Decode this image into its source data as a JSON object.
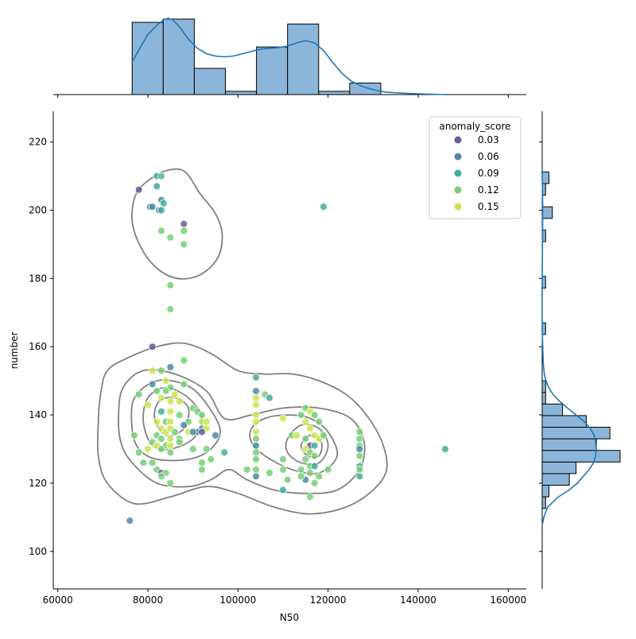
{
  "chart_data": {
    "type": "scatter",
    "xlabel": "N50",
    "ylabel": "number",
    "xlim": [
      59000,
      164000
    ],
    "ylim": [
      89,
      229
    ],
    "xticks": [
      60000,
      80000,
      100000,
      120000,
      140000,
      160000
    ],
    "yticks": [
      100,
      120,
      140,
      160,
      180,
      200,
      220
    ],
    "legend": {
      "title": "anomaly_score",
      "position": "top-right",
      "entries": [
        {
          "label": "0.03",
          "color": "#6a5b9a"
        },
        {
          "label": "0.06",
          "color": "#4f89a2"
        },
        {
          "label": "0.09",
          "color": "#3fae9e"
        },
        {
          "label": "0.12",
          "color": "#76cf77"
        },
        {
          "label": "0.15",
          "color": "#cde44e"
        }
      ]
    },
    "colors": {
      "bar_fill": "#8bb6d9",
      "bar_edge": "#000000",
      "kde_line": "#1f77b4",
      "contour": "#808080"
    },
    "points": [
      [
        78000,
        206,
        0.03
      ],
      [
        80500,
        201,
        0.06
      ],
      [
        81000,
        201,
        0.06
      ],
      [
        82000,
        210,
        0.09
      ],
      [
        82000,
        207,
        0.09
      ],
      [
        83000,
        210,
        0.1
      ],
      [
        83000,
        203,
        0.06
      ],
      [
        83500,
        202,
        0.09
      ],
      [
        82500,
        200,
        0.06
      ],
      [
        83000,
        200,
        0.09
      ],
      [
        88000,
        196,
        0.03
      ],
      [
        83000,
        194,
        0.12
      ],
      [
        85000,
        192,
        0.12
      ],
      [
        88000,
        194,
        0.12
      ],
      [
        88000,
        190,
        0.12
      ],
      [
        85000,
        178,
        0.12
      ],
      [
        85000,
        171,
        0.12
      ],
      [
        119000,
        201,
        0.09
      ],
      [
        81000,
        160,
        0.03
      ],
      [
        88000,
        156,
        0.12
      ],
      [
        85000,
        154,
        0.06
      ],
      [
        81000,
        153,
        0.15
      ],
      [
        83000,
        153,
        0.12
      ],
      [
        78000,
        146,
        0.12
      ],
      [
        81000,
        149,
        0.06
      ],
      [
        84000,
        150,
        0.15
      ],
      [
        85000,
        148,
        0.12
      ],
      [
        88000,
        149,
        0.12
      ],
      [
        80000,
        143,
        0.15
      ],
      [
        82000,
        147,
        0.12
      ],
      [
        83000,
        145,
        0.15
      ],
      [
        84000,
        147,
        0.12
      ],
      [
        85000,
        144,
        0.15
      ],
      [
        86000,
        146,
        0.15
      ],
      [
        87000,
        144,
        0.15
      ],
      [
        90000,
        142,
        0.12
      ],
      [
        91000,
        141,
        0.12
      ],
      [
        92000,
        140,
        0.12
      ],
      [
        92000,
        138,
        0.15
      ],
      [
        93000,
        138,
        0.15
      ],
      [
        92000,
        136,
        0.09
      ],
      [
        93000,
        136,
        0.15
      ],
      [
        89000,
        138,
        0.12
      ],
      [
        87000,
        140,
        0.12
      ],
      [
        85000,
        141,
        0.15
      ],
      [
        83000,
        141,
        0.09
      ],
      [
        82000,
        138,
        0.15
      ],
      [
        84000,
        138,
        0.12
      ],
      [
        85000,
        138,
        0.15
      ],
      [
        83000,
        136,
        0.15
      ],
      [
        84000,
        135,
        0.15
      ],
      [
        85000,
        136,
        0.15
      ],
      [
        86000,
        135,
        0.12
      ],
      [
        82000,
        134,
        0.12
      ],
      [
        83000,
        133,
        0.12
      ],
      [
        85000,
        133,
        0.15
      ],
      [
        87000,
        133,
        0.12
      ],
      [
        81000,
        132,
        0.12
      ],
      [
        82000,
        131,
        0.15
      ],
      [
        84000,
        131,
        0.12
      ],
      [
        85000,
        131,
        0.15
      ],
      [
        80000,
        130,
        0.15
      ],
      [
        83000,
        130,
        0.12
      ],
      [
        85000,
        129,
        0.12
      ],
      [
        87000,
        132,
        0.12
      ],
      [
        91000,
        135,
        0.06
      ],
      [
        95000,
        134,
        0.06
      ],
      [
        90000,
        130,
        0.12
      ],
      [
        93000,
        130,
        0.12
      ],
      [
        97000,
        129,
        0.09
      ],
      [
        94000,
        127,
        0.12
      ],
      [
        92000,
        126,
        0.12
      ],
      [
        88000,
        137,
        0.06
      ],
      [
        89000,
        135,
        0.15
      ],
      [
        90000,
        135,
        0.06
      ],
      [
        92000,
        135,
        0.03
      ],
      [
        77000,
        134,
        0.12
      ],
      [
        78000,
        129,
        0.12
      ],
      [
        79000,
        126,
        0.12
      ],
      [
        81000,
        126,
        0.12
      ],
      [
        82000,
        124,
        0.12
      ],
      [
        83000,
        123,
        0.03
      ],
      [
        84000,
        123,
        0.12
      ],
      [
        83000,
        122,
        0.12
      ],
      [
        85000,
        120,
        0.12
      ],
      [
        92000,
        124,
        0.12
      ],
      [
        76000,
        109,
        0.06
      ],
      [
        104000,
        151,
        0.09
      ],
      [
        104000,
        147,
        0.06
      ],
      [
        106000,
        146,
        0.12
      ],
      [
        107000,
        145,
        0.09
      ],
      [
        104000,
        145,
        0.15
      ],
      [
        104000,
        143,
        0.15
      ],
      [
        104000,
        140,
        0.15
      ],
      [
        104000,
        138,
        0.15
      ],
      [
        104000,
        135,
        0.15
      ],
      [
        104000,
        133,
        0.12
      ],
      [
        104000,
        131,
        0.06
      ],
      [
        104000,
        129,
        0.12
      ],
      [
        104000,
        127,
        0.12
      ],
      [
        102000,
        124,
        0.12
      ],
      [
        104000,
        124,
        0.12
      ],
      [
        104000,
        122,
        0.06
      ],
      [
        107000,
        123,
        0.12
      ],
      [
        110000,
        139,
        0.15
      ],
      [
        110000,
        127,
        0.12
      ],
      [
        110000,
        124,
        0.12
      ],
      [
        111000,
        121,
        0.12
      ],
      [
        110000,
        118,
        0.09
      ],
      [
        112000,
        134,
        0.12
      ],
      [
        113000,
        134,
        0.15
      ],
      [
        114000,
        140,
        0.12
      ],
      [
        115000,
        142,
        0.12
      ],
      [
        116000,
        141,
        0.15
      ],
      [
        117000,
        140,
        0.12
      ],
      [
        118000,
        138,
        0.12
      ],
      [
        115000,
        138,
        0.15
      ],
      [
        116000,
        136,
        0.15
      ],
      [
        117000,
        134,
        0.15
      ],
      [
        118000,
        133,
        0.15
      ],
      [
        119000,
        134,
        0.12
      ],
      [
        115000,
        133,
        0.12
      ],
      [
        116000,
        131,
        0.03
      ],
      [
        117000,
        131,
        0.09
      ],
      [
        115000,
        130,
        0.15
      ],
      [
        116000,
        129,
        0.12
      ],
      [
        117000,
        128,
        0.12
      ],
      [
        115000,
        127,
        0.12
      ],
      [
        116000,
        125,
        0.12
      ],
      [
        117000,
        125,
        0.09
      ],
      [
        114000,
        124,
        0.12
      ],
      [
        116000,
        123,
        0.12
      ],
      [
        118000,
        122,
        0.12
      ],
      [
        120000,
        124,
        0.12
      ],
      [
        117000,
        120,
        0.12
      ],
      [
        115000,
        121,
        0.06
      ],
      [
        116000,
        116,
        0.12
      ],
      [
        114000,
        122,
        0.12
      ],
      [
        127000,
        135,
        0.12
      ],
      [
        127000,
        133,
        0.12
      ],
      [
        127000,
        131,
        0.12
      ],
      [
        127000,
        130,
        0.06
      ],
      [
        127000,
        128,
        0.12
      ],
      [
        127000,
        125,
        0.09
      ],
      [
        127000,
        124,
        0.12
      ],
      [
        127000,
        122,
        0.09
      ],
      [
        146000,
        130,
        0.09
      ]
    ],
    "top_histogram": {
      "bin_edges": [
        76500,
        83400,
        90300,
        97200,
        104100,
        111000,
        117900,
        124800,
        131700
      ],
      "counts": [
        44,
        46,
        16,
        2,
        29,
        43,
        2,
        7
      ]
    },
    "right_histogram": {
      "bin_edges": [
        112.6,
        116,
        119.4,
        122.8,
        126.2,
        129.6,
        133,
        136.4,
        139.8,
        143.2,
        146.6,
        150,
        153.4,
        156.8,
        160.2,
        163.6,
        167,
        170.4,
        173.8,
        177.2,
        180.6,
        184,
        187.4,
        190.8,
        194.2,
        197.6,
        201,
        204.4,
        207.8,
        211.2
      ],
      "counts": [
        1,
        2,
        8,
        10,
        23,
        16,
        20,
        13,
        6,
        1,
        1,
        0,
        0,
        0,
        0,
        1,
        0,
        0,
        0,
        1,
        0,
        0,
        0,
        1,
        0,
        3,
        0,
        1,
        2
      ]
    },
    "top_kde": [
      [
        76500,
        0.42
      ],
      [
        78000,
        0.58
      ],
      [
        80000,
        0.78
      ],
      [
        82000,
        0.9
      ],
      [
        83500,
        0.97
      ],
      [
        84500,
        0.99
      ],
      [
        85500,
        0.97
      ],
      [
        87000,
        0.88
      ],
      [
        89000,
        0.72
      ],
      [
        91000,
        0.6
      ],
      [
        93000,
        0.53
      ],
      [
        95000,
        0.5
      ],
      [
        97000,
        0.49
      ],
      [
        99000,
        0.5
      ],
      [
        101000,
        0.53
      ],
      [
        103000,
        0.56
      ],
      [
        105000,
        0.59
      ],
      [
        107000,
        0.6
      ],
      [
        109000,
        0.61
      ],
      [
        111000,
        0.63
      ],
      [
        113000,
        0.67
      ],
      [
        115000,
        0.7
      ],
      [
        117000,
        0.67
      ],
      [
        119000,
        0.57
      ],
      [
        121000,
        0.42
      ],
      [
        123000,
        0.28
      ],
      [
        125000,
        0.18
      ],
      [
        127000,
        0.12
      ],
      [
        129000,
        0.08
      ],
      [
        131000,
        0.05
      ],
      [
        133000,
        0.03
      ],
      [
        136000,
        0.02
      ],
      [
        140000,
        0.01
      ],
      [
        146000,
        0.0
      ]
    ],
    "right_kde": [
      [
        107.5,
        0.0
      ],
      [
        110,
        0.03
      ],
      [
        113,
        0.1
      ],
      [
        116,
        0.3
      ],
      [
        118,
        0.5
      ],
      [
        120,
        0.65
      ],
      [
        122,
        0.76
      ],
      [
        124,
        0.87
      ],
      [
        126,
        0.95
      ],
      [
        128,
        0.99
      ],
      [
        130,
        1.0
      ],
      [
        132,
        0.99
      ],
      [
        134,
        0.96
      ],
      [
        136,
        0.89
      ],
      [
        138,
        0.78
      ],
      [
        140,
        0.63
      ],
      [
        142,
        0.47
      ],
      [
        144,
        0.32
      ],
      [
        146,
        0.2
      ],
      [
        148,
        0.12
      ],
      [
        150,
        0.07
      ],
      [
        152,
        0.04
      ],
      [
        155,
        0.02
      ],
      [
        160,
        0.01
      ],
      [
        165,
        0.0
      ],
      [
        180,
        0.0
      ],
      [
        200,
        0.01
      ],
      [
        211,
        0.0
      ]
    ],
    "contours": [
      [
        [
          88500,
          211
        ],
        [
          91500,
          205
        ],
        [
          95000,
          199
        ],
        [
          96500,
          193
        ],
        [
          95500,
          186
        ],
        [
          91500,
          181
        ],
        [
          86500,
          180
        ],
        [
          82000,
          183
        ],
        [
          78500,
          189
        ],
        [
          76500,
          197
        ],
        [
          77500,
          205
        ],
        [
          81500,
          210
        ],
        [
          85500,
          212
        ]
      ],
      [
        [
          69500,
          146
        ],
        [
          71000,
          153
        ],
        [
          76000,
          157
        ],
        [
          82000,
          160
        ],
        [
          88000,
          161
        ],
        [
          94000,
          158
        ],
        [
          100000,
          153
        ],
        [
          106000,
          152
        ],
        [
          112000,
          152
        ],
        [
          118000,
          150
        ],
        [
          124000,
          146
        ],
        [
          128500,
          140
        ],
        [
          132000,
          132
        ],
        [
          133000,
          124
        ],
        [
          130000,
          118
        ],
        [
          124000,
          113
        ],
        [
          116000,
          111
        ],
        [
          108000,
          113
        ],
        [
          100000,
          117
        ],
        [
          93000,
          119
        ],
        [
          85000,
          116
        ],
        [
          77000,
          114
        ],
        [
          71000,
          120
        ],
        [
          69000,
          128
        ],
        [
          69000,
          138
        ]
      ],
      [
        [
          76500,
          126
        ],
        [
          82000,
          120
        ],
        [
          89000,
          119
        ],
        [
          94000,
          121
        ],
        [
          98000,
          124
        ],
        [
          102000,
          121
        ],
        [
          108000,
          118
        ],
        [
          115000,
          117
        ],
        [
          122000,
          118
        ],
        [
          127000,
          124
        ],
        [
          128000,
          132
        ],
        [
          125000,
          139
        ],
        [
          118000,
          142
        ],
        [
          110000,
          142
        ],
        [
          103000,
          140
        ],
        [
          97000,
          139
        ],
        [
          93000,
          147
        ],
        [
          86000,
          152
        ],
        [
          79000,
          153
        ],
        [
          74500,
          148
        ],
        [
          73500,
          140
        ],
        [
          74000,
          132
        ]
      ],
      [
        [
          76500,
          136
        ],
        [
          77000,
          145
        ],
        [
          82000,
          150
        ],
        [
          88000,
          149
        ],
        [
          92000,
          145
        ],
        [
          96000,
          136
        ],
        [
          94000,
          130
        ],
        [
          89000,
          127
        ],
        [
          82000,
          127
        ],
        [
          78000,
          130
        ]
      ],
      [
        [
          79000,
          138
        ],
        [
          80000,
          145
        ],
        [
          84000,
          148
        ],
        [
          89000,
          145
        ],
        [
          92000,
          139
        ],
        [
          90000,
          133
        ],
        [
          85000,
          130
        ],
        [
          81000,
          131
        ]
      ],
      [
        [
          81500,
          139
        ],
        [
          82500,
          144
        ],
        [
          86000,
          145
        ],
        [
          89000,
          142
        ],
        [
          88000,
          136
        ],
        [
          84000,
          134
        ]
      ],
      [
        [
          103000,
          136
        ],
        [
          106000,
          139
        ],
        [
          111000,
          140
        ],
        [
          116000,
          139
        ],
        [
          120000,
          135
        ],
        [
          122000,
          128
        ],
        [
          118000,
          123
        ],
        [
          112000,
          124
        ],
        [
          106000,
          128
        ],
        [
          103000,
          132
        ]
      ],
      [
        [
          111000,
          133
        ],
        [
          114000,
          137
        ],
        [
          118000,
          136
        ],
        [
          120000,
          131
        ],
        [
          118000,
          126
        ],
        [
          114000,
          126
        ],
        [
          111000,
          129
        ]
      ],
      [
        [
          114000,
          131
        ],
        [
          116000,
          134
        ],
        [
          118500,
          132
        ],
        [
          118000,
          128
        ],
        [
          115500,
          128
        ]
      ]
    ]
  }
}
